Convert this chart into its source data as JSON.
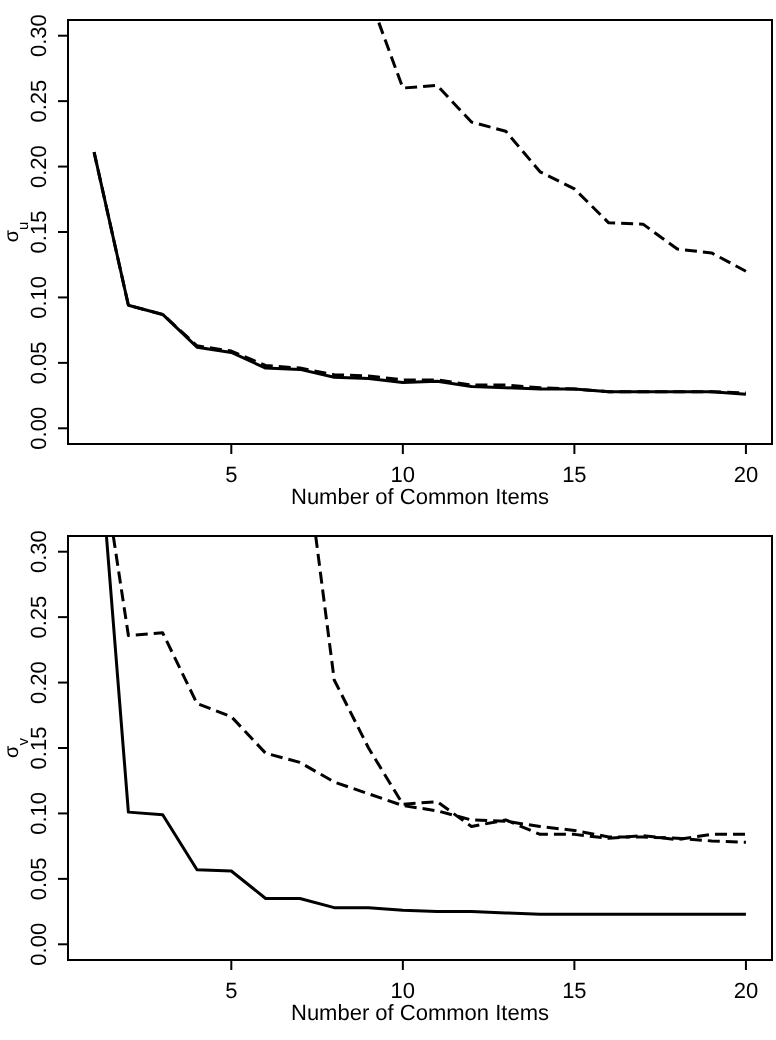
{
  "chart_data": [
    {
      "type": "line",
      "xlabel": "Number of Common Items",
      "ylabel": "σ$_{u}$",
      "xlim": [
        0.24,
        20.76
      ],
      "ylim": [
        -0.012,
        0.312
      ],
      "xticks": [
        5,
        10,
        15,
        20
      ],
      "yticks": [
        {
          "value": 0,
          "label": "0.00"
        },
        0.05,
        {
          "value": 0.1,
          "label": "0.10"
        },
        0.15,
        {
          "value": 0.2,
          "label": "0.20"
        },
        0.25,
        {
          "value": 0.3,
          "label": "0.30"
        }
      ],
      "grid": false,
      "marker": "none",
      "x": [
        1,
        2,
        3,
        4,
        5,
        6,
        7,
        8,
        9,
        10,
        11,
        12,
        13,
        14,
        15,
        16,
        17,
        18,
        19,
        20
      ],
      "series": [
        {
          "color": "#000000",
          "line_style": "solid",
          "values": [
            0.211,
            0.094,
            0.087,
            0.062,
            0.058,
            0.046,
            0.045,
            0.039,
            0.038,
            0.035,
            0.036,
            0.032,
            0.031,
            0.03,
            0.03,
            0.028,
            0.028,
            0.028,
            0.028,
            0.026
          ]
        },
        {
          "color": "#000000",
          "line_style": "dashed",
          "values": [
            0.211,
            0.094,
            0.087,
            0.063,
            0.059,
            0.048,
            0.046,
            0.041,
            0.04,
            0.037,
            0.037,
            0.033,
            0.033,
            0.031,
            0.03,
            0.028,
            0.028,
            0.028,
            0.028,
            0.027
          ]
        },
        {
          "color": "#000000",
          "line_style": "dashed",
          "x": [
            9.3,
            10,
            11,
            12,
            13,
            14,
            15,
            16,
            17,
            18,
            19,
            20
          ],
          "values": [
            0.31,
            0.26,
            0.262,
            0.234,
            0.227,
            0.196,
            0.183,
            0.157,
            0.156,
            0.137,
            0.134,
            0.12
          ]
        }
      ]
    },
    {
      "type": "line",
      "xlabel": "Number of Common Items",
      "ylabel": "σ$_{v}$",
      "xlim": [
        0.24,
        20.76
      ],
      "ylim": [
        -0.012,
        0.312
      ],
      "xticks": [
        5,
        10,
        15,
        20
      ],
      "yticks": [
        {
          "value": 0,
          "label": "0.00"
        },
        0.05,
        {
          "value": 0.1,
          "label": "0.10"
        },
        0.15,
        {
          "value": 0.2,
          "label": "0.20"
        },
        0.25,
        {
          "value": 0.3,
          "label": "0.30"
        }
      ],
      "grid": false,
      "marker": "none",
      "x": [
        1.36,
        2,
        3,
        4,
        5,
        6,
        7,
        8,
        9,
        10,
        11,
        12,
        13,
        14,
        15,
        16,
        17,
        18,
        19,
        20
      ],
      "series": [
        {
          "color": "#000000",
          "line_style": "solid",
          "values": [
            0.312,
            0.101,
            0.099,
            0.057,
            0.056,
            0.035,
            0.035,
            0.028,
            0.028,
            0.026,
            0.025,
            0.025,
            0.024,
            0.023,
            0.023,
            0.023,
            0.023,
            0.023,
            0.023,
            0.023
          ]
        },
        {
          "color": "#000000",
          "line_style": "dashed",
          "x": [
            1.56,
            2,
            3,
            4,
            5,
            6,
            7,
            8,
            9,
            10,
            11,
            12,
            13,
            14,
            15,
            16,
            17,
            18,
            19,
            20
          ],
          "values": [
            0.312,
            0.236,
            0.238,
            0.184,
            0.174,
            0.146,
            0.139,
            0.124,
            0.115,
            0.106,
            0.102,
            0.095,
            0.094,
            0.09,
            0.087,
            0.082,
            0.082,
            0.081,
            0.079,
            0.078
          ]
        },
        {
          "color": "#000000",
          "line_style": "dashed",
          "x": [
            7.46,
            8,
            9,
            10,
            11,
            12,
            13,
            14,
            15,
            16,
            17,
            18,
            19,
            20
          ],
          "values": [
            0.312,
            0.202,
            0.15,
            0.107,
            0.109,
            0.09,
            0.095,
            0.084,
            0.084,
            0.081,
            0.083,
            0.08,
            0.084,
            0.084
          ]
        }
      ]
    }
  ]
}
